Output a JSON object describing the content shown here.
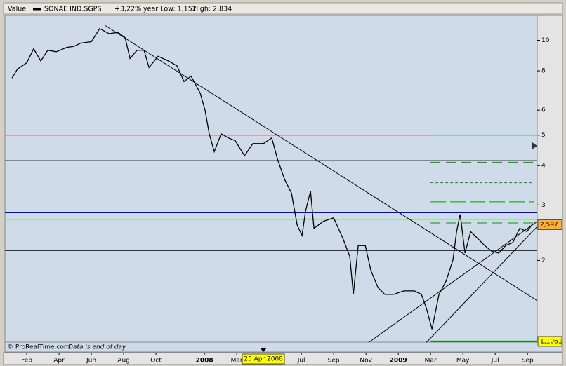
{
  "chart_data": {
    "type": "line",
    "title_left": "Value",
    "change": "+3,22%",
    "low_label": "year Low: 1,152",
    "high_label": "High: 2,834",
    "footer_source": "© ProRealTime.com",
    "footer_note": "Data is end of day",
    "log_y": true,
    "grid": false,
    "ylim": [
      1.1,
      12
    ],
    "yticks": [
      2,
      3,
      4,
      5,
      6,
      8,
      10
    ],
    "xlim": [
      -0.35,
      32.6
    ],
    "xticks": [
      {
        "value": 1,
        "label": "Feb"
      },
      {
        "value": 3,
        "label": "Apr"
      },
      {
        "value": 5,
        "label": "Jun"
      },
      {
        "value": 7,
        "label": "Aug"
      },
      {
        "value": 9,
        "label": "Oct"
      },
      {
        "value": 12,
        "label": "2008"
      },
      {
        "value": 14,
        "label": "Mar"
      },
      {
        "value": 18,
        "label": "Jul"
      },
      {
        "value": 20,
        "label": "Sep"
      },
      {
        "value": 22,
        "label": "Nov"
      },
      {
        "value": 24,
        "label": "2009"
      },
      {
        "value": 26,
        "label": "Mar"
      },
      {
        "value": 28,
        "label": "May"
      },
      {
        "value": 30,
        "label": "Jul"
      },
      {
        "value": 32,
        "label": "Sep"
      }
    ],
    "cursor": {
      "x": 15.65,
      "label": "25 Apr 2008"
    },
    "series": [
      {
        "name": "SONAE IND.SGPS",
        "color": "#000000",
        "x": [
          0.09,
          0.43,
          1.0,
          1.43,
          1.87,
          2.3,
          2.83,
          3.48,
          3.91,
          4.35,
          5.0,
          5.52,
          6.09,
          6.65,
          7.09,
          7.39,
          7.83,
          8.26,
          8.57,
          9.13,
          9.78,
          10.3,
          10.74,
          11.17,
          11.74,
          12.04,
          12.3,
          12.61,
          13.04,
          13.48,
          13.91,
          14.48,
          15.0,
          15.65,
          16.17,
          16.52,
          16.96,
          17.39,
          17.74,
          18.04,
          18.26,
          18.57,
          18.78,
          19.35,
          20.0,
          20.57,
          21.0,
          21.22,
          21.52,
          21.96,
          22.3,
          22.74,
          23.17,
          23.7,
          24.35,
          25.0,
          25.43,
          25.74,
          26.09,
          26.52,
          26.96,
          27.39,
          27.61,
          27.83,
          28.13,
          28.48,
          28.91,
          29.35,
          29.78,
          30.22,
          30.65,
          31.09,
          31.52,
          31.96,
          32.26
        ],
        "values": [
          7.59,
          8.11,
          8.49,
          9.4,
          8.6,
          9.3,
          9.2,
          9.5,
          9.56,
          9.8,
          9.9,
          10.9,
          10.5,
          10.6,
          10.2,
          8.76,
          9.3,
          9.3,
          8.2,
          8.9,
          8.6,
          8.3,
          7.4,
          7.7,
          6.8,
          6.0,
          5.05,
          4.43,
          5.05,
          4.9,
          4.8,
          4.3,
          4.7,
          4.7,
          4.9,
          4.2,
          3.62,
          3.27,
          2.59,
          2.4,
          2.87,
          3.32,
          2.53,
          2.66,
          2.73,
          2.35,
          2.06,
          1.56,
          2.23,
          2.23,
          1.86,
          1.64,
          1.56,
          1.56,
          1.6,
          1.6,
          1.56,
          1.41,
          1.21,
          1.56,
          1.72,
          2.01,
          2.47,
          2.8,
          2.11,
          2.47,
          2.35,
          2.23,
          2.14,
          2.11,
          2.23,
          2.28,
          2.53,
          2.47,
          2.59
        ]
      }
    ],
    "lines": [
      {
        "x": [
          -0.35,
          26.0
        ],
        "values": [
          5,
          5
        ],
        "color": "#e00000"
      },
      {
        "x": [
          26.0,
          32.6
        ],
        "values": [
          5,
          5
        ],
        "color": "#008800"
      },
      {
        "x": [
          -0.35,
          32.6
        ],
        "values": [
          4.15,
          4.15
        ],
        "color": "#000000"
      },
      {
        "x": [
          26.0,
          32.4
        ],
        "values": [
          4.1,
          4.1
        ],
        "color": "#009900",
        "dash": "14 8"
      },
      {
        "x": [
          26.0,
          32.4
        ],
        "values": [
          3.53,
          3.53
        ],
        "color": "#009900",
        "dash": "4 3"
      },
      {
        "x": [
          26.0,
          32.4
        ],
        "values": [
          3.07,
          3.07
        ],
        "color": "#009900",
        "dash": "22 6"
      },
      {
        "x": [
          -0.35,
          32.6
        ],
        "values": [
          2.834,
          2.834
        ],
        "color": "#0000cc"
      },
      {
        "x": [
          -0.35,
          32.6
        ],
        "values": [
          2.7,
          2.7
        ],
        "color": "#55dd55"
      },
      {
        "x": [
          26.0,
          32.4
        ],
        "values": [
          2.63,
          2.63
        ],
        "color": "#009900",
        "dash": "14 8"
      },
      {
        "x": [
          -0.35,
          32.6
        ],
        "values": [
          2.15,
          2.15
        ],
        "color": "#000000"
      },
      {
        "x": [
          26.0,
          32.6
        ],
        "values": [
          1.1061,
          1.1061
        ],
        "color": "#008800",
        "width": 2
      },
      {
        "x": [
          5.87,
          32.6
        ],
        "values": [
          11.14,
          1.49
        ],
        "color": "#000000"
      },
      {
        "x": [
          22.17,
          32.6
        ],
        "values": [
          1.098,
          2.66
        ],
        "color": "#000000"
      },
      {
        "x": [
          25.74,
          32.6
        ],
        "values": [
          1.098,
          2.56
        ],
        "color": "#000000"
      }
    ],
    "price_labels": [
      {
        "value": 2.597,
        "label": "2,597",
        "color": "#ffb030"
      },
      {
        "value": 1.1061,
        "label": "1,1061",
        "color": "#ffff00"
      }
    ]
  }
}
